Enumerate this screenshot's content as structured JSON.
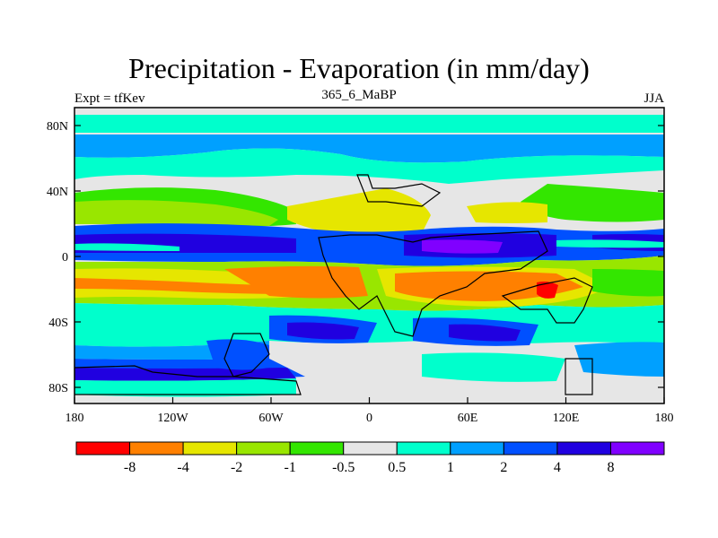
{
  "title": "Precipitation - Evaporation (in mm/day)",
  "left_label": "Expt = tfKev",
  "center_label": "365_6_MaBP",
  "right_label": "JJA",
  "lat_ticks": [
    "80N",
    "40N",
    "0",
    "40S",
    "80S"
  ],
  "lon_ticks": [
    "180",
    "120W",
    "60W",
    "0",
    "60E",
    "120E",
    "180"
  ],
  "colorbar": {
    "colors": [
      "#ff0000",
      "#ff8000",
      "#e6e600",
      "#99e600",
      "#33e600",
      "#e6e6e6",
      "#00ffcc",
      "#00a0ff",
      "#0050ff",
      "#2000e0",
      "#8000ff"
    ],
    "labels": [
      "-8",
      "-4",
      "-2",
      "-1",
      "-0.5",
      "0.5",
      "1",
      "2",
      "4",
      "8"
    ]
  },
  "map_background": "#e6e6e6"
}
